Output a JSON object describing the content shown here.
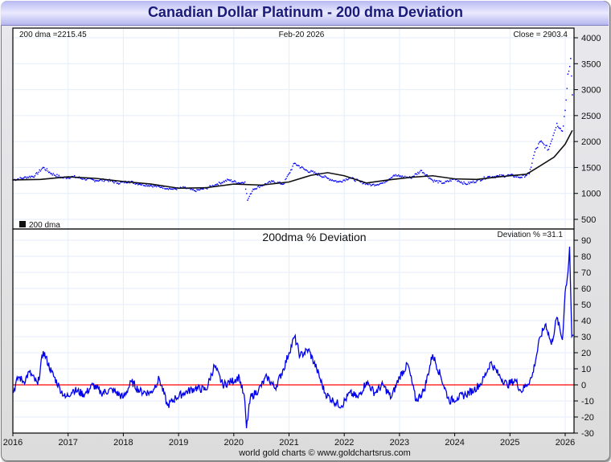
{
  "title": "Canadian Dollar Platinum - 200 dma Deviation",
  "footer": "world gold charts © www.goldchartsrus.com",
  "colors": {
    "price": "#0000ff",
    "dma": "#111111",
    "deviation": "#0000ee",
    "zero_line": "#ff0000",
    "grid": "#e4eef8",
    "title_text": "#1a1a7a"
  },
  "chart_data": [
    {
      "type": "scatter",
      "title": "",
      "info_left": "200 dma =2215.45",
      "info_center": "Feb-20  2026",
      "info_right": "Close = 2903.4",
      "legend": "200 dma",
      "legend_position": "bottom-left",
      "ylim": [
        500,
        4000
      ],
      "yticks": [
        4000,
        3500,
        3000,
        2500,
        2000,
        1500,
        1000,
        500
      ],
      "xlim": [
        2016,
        2026.15
      ],
      "grid": true,
      "series": [
        {
          "name": "Close",
          "style": "dots",
          "x": [
            2016.0,
            2016.2,
            2016.4,
            2016.55,
            2016.7,
            2016.9,
            2017.1,
            2017.3,
            2017.5,
            2017.7,
            2017.9,
            2018.1,
            2018.3,
            2018.5,
            2018.7,
            2018.9,
            2019.1,
            2019.3,
            2019.5,
            2019.7,
            2019.9,
            2020.1,
            2020.2,
            2020.25,
            2020.35,
            2020.5,
            2020.7,
            2020.9,
            2021.0,
            2021.1,
            2021.3,
            2021.5,
            2021.7,
            2021.9,
            2022.1,
            2022.3,
            2022.5,
            2022.7,
            2022.9,
            2023.0,
            2023.2,
            2023.4,
            2023.6,
            2023.8,
            2024.0,
            2024.2,
            2024.4,
            2024.6,
            2024.8,
            2025.0,
            2025.2,
            2025.35,
            2025.45,
            2025.55,
            2025.7,
            2025.85,
            2025.95,
            2026.0,
            2026.05,
            2026.1,
            2026.13
          ],
          "y": [
            1260,
            1300,
            1340,
            1500,
            1380,
            1300,
            1320,
            1280,
            1250,
            1260,
            1200,
            1230,
            1180,
            1150,
            1120,
            1080,
            1110,
            1050,
            1100,
            1180,
            1260,
            1200,
            1220,
            870,
            1080,
            1150,
            1230,
            1180,
            1380,
            1580,
            1450,
            1380,
            1290,
            1220,
            1300,
            1220,
            1160,
            1200,
            1350,
            1330,
            1300,
            1440,
            1250,
            1200,
            1280,
            1180,
            1240,
            1320,
            1330,
            1350,
            1310,
            1380,
            1800,
            2000,
            1850,
            2350,
            2200,
            2600,
            3300,
            3600,
            2900
          ]
        },
        {
          "name": "200 dma",
          "style": "line",
          "x": [
            2016.0,
            2016.5,
            2017.0,
            2017.5,
            2018.0,
            2018.5,
            2019.0,
            2019.5,
            2020.0,
            2020.5,
            2021.0,
            2021.4,
            2021.7,
            2022.0,
            2022.4,
            2022.8,
            2023.2,
            2023.6,
            2024.0,
            2024.4,
            2024.8,
            2025.0,
            2025.3,
            2025.5,
            2025.8,
            2026.0,
            2026.13
          ],
          "y": [
            1260,
            1270,
            1320,
            1290,
            1230,
            1180,
            1100,
            1110,
            1180,
            1160,
            1220,
            1350,
            1400,
            1340,
            1200,
            1260,
            1310,
            1340,
            1280,
            1270,
            1320,
            1340,
            1370,
            1500,
            1700,
            1950,
            2215
          ]
        }
      ]
    },
    {
      "type": "line",
      "title": "200dma  %  Deviation",
      "info_right": "Deviation % =31.1",
      "ylim": [
        -30,
        90
      ],
      "yticks": [
        90,
        80,
        70,
        60,
        50,
        40,
        30,
        20,
        10,
        0,
        -10,
        -20,
        -30
      ],
      "xlim": [
        2016,
        2026.15
      ],
      "xticks": [
        "2016",
        "2017",
        "2018",
        "2019",
        "2020",
        "2021",
        "2022",
        "2023",
        "2024",
        "2025",
        "2026"
      ],
      "reference_line": 0,
      "grid": true,
      "series": [
        {
          "name": "Deviation %",
          "x": [
            2016.0,
            2016.1,
            2016.2,
            2016.3,
            2016.45,
            2016.55,
            2016.7,
            2016.85,
            2016.95,
            2017.1,
            2017.3,
            2017.45,
            2017.6,
            2017.8,
            2018.0,
            2018.15,
            2018.3,
            2018.5,
            2018.65,
            2018.8,
            2018.95,
            2019.1,
            2019.3,
            2019.5,
            2019.65,
            2019.8,
            2019.95,
            2020.1,
            2020.2,
            2020.23,
            2020.3,
            2020.45,
            2020.6,
            2020.75,
            2020.9,
            2021.0,
            2021.1,
            2021.2,
            2021.35,
            2021.5,
            2021.65,
            2021.8,
            2021.95,
            2022.1,
            2022.25,
            2022.4,
            2022.55,
            2022.7,
            2022.85,
            2023.0,
            2023.15,
            2023.3,
            2023.45,
            2023.6,
            2023.75,
            2023.9,
            2024.05,
            2024.2,
            2024.35,
            2024.5,
            2024.65,
            2024.8,
            2024.95,
            2025.1,
            2025.2,
            2025.3,
            2025.4,
            2025.55,
            2025.65,
            2025.75,
            2025.85,
            2025.95,
            2026.0,
            2026.05,
            2026.08,
            2026.12,
            2026.15
          ],
          "y": [
            -5,
            5,
            2,
            8,
            0,
            21,
            8,
            -2,
            -8,
            -3,
            -6,
            0,
            -5,
            -3,
            -8,
            2,
            -4,
            -5,
            4,
            -13,
            -8,
            -5,
            -2,
            -3,
            12,
            0,
            2,
            5,
            -10,
            -27,
            -8,
            -3,
            5,
            -2,
            10,
            20,
            30,
            18,
            22,
            10,
            -5,
            -10,
            -13,
            -5,
            -8,
            2,
            -5,
            0,
            -8,
            5,
            13,
            -10,
            -3,
            19,
            5,
            -10,
            -8,
            -6,
            -3,
            2,
            14,
            6,
            0,
            3,
            -4,
            0,
            5,
            30,
            38,
            25,
            42,
            28,
            58,
            70,
            86,
            30,
            31
          ]
        }
      ]
    }
  ]
}
